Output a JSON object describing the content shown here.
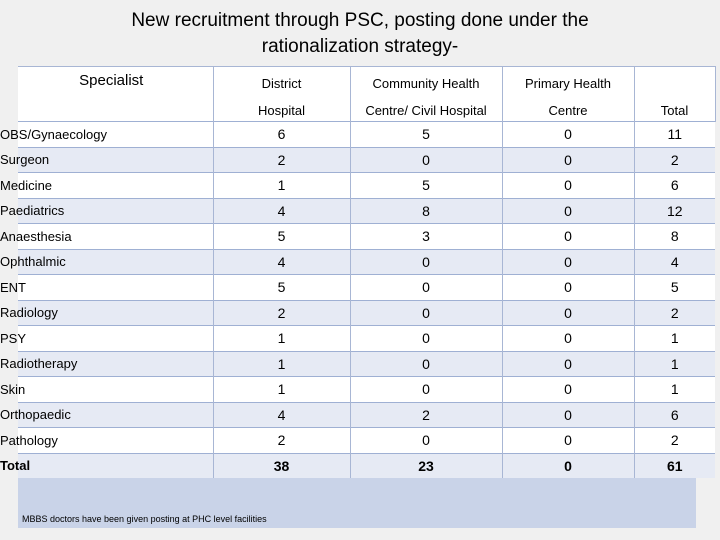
{
  "title": {
    "line1": "New recruitment through PSC, posting done under the",
    "line2": "rationalization strategy-"
  },
  "table": {
    "header_row1": [
      "Specialist",
      "District",
      "Community Health",
      "Primary Health",
      ""
    ],
    "header_row2": [
      "",
      "Hospital",
      "Centre/ Civil Hospital",
      "Centre",
      "Total"
    ],
    "rows": [
      [
        "OBS/Gynaecology",
        "6",
        "5",
        "0",
        "11"
      ],
      [
        "Surgeon",
        "2",
        "0",
        "0",
        "2"
      ],
      [
        "Medicine",
        "1",
        "5",
        "0",
        "6"
      ],
      [
        "Paediatrics",
        "4",
        "8",
        "0",
        "12"
      ],
      [
        "Anaesthesia",
        "5",
        "3",
        "0",
        "8"
      ],
      [
        "Ophthalmic",
        "4",
        "0",
        "0",
        "4"
      ],
      [
        "ENT",
        "5",
        "0",
        "0",
        "5"
      ],
      [
        "Radiology",
        "2",
        "0",
        "0",
        "2"
      ],
      [
        "PSY",
        "1",
        "0",
        "0",
        "1"
      ],
      [
        "Radiotherapy",
        "1",
        "0",
        "0",
        "1"
      ],
      [
        "Skin",
        "1",
        "0",
        "0",
        "1"
      ],
      [
        "Orthopaedic",
        "4",
        "2",
        "0",
        "6"
      ],
      [
        "Pathology",
        "2",
        "0",
        "0",
        "2"
      ],
      [
        "Total",
        "38",
        "23",
        "0",
        "61"
      ]
    ]
  },
  "footnote": "MBBS doctors have been given posting at PHC level facilities"
}
